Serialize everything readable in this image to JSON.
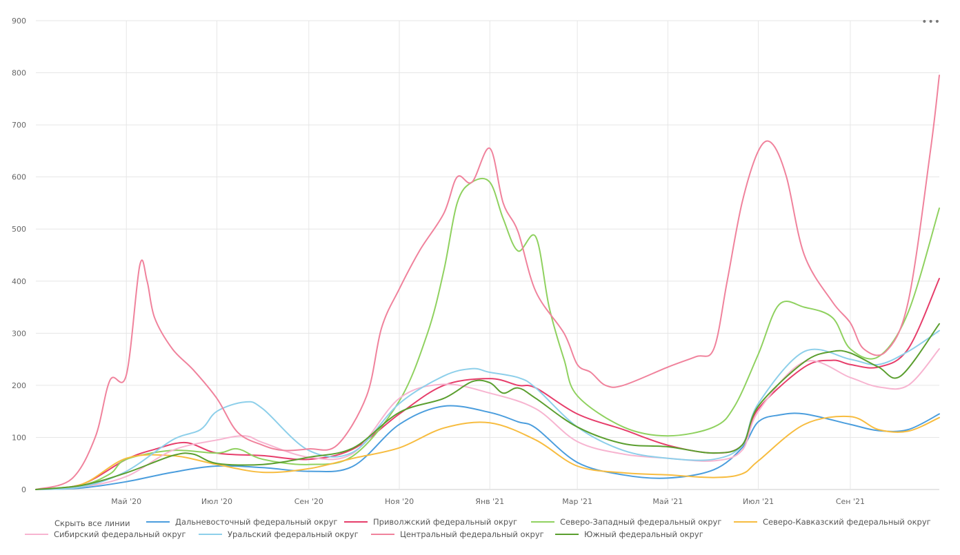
{
  "menu_label": "•••",
  "legend": {
    "hide_all": "Скрыть все линии"
  },
  "chart_data": {
    "type": "line",
    "title": "",
    "xlabel": "",
    "ylabel": "",
    "ylim": [
      0,
      900
    ],
    "yticks": [
      0,
      100,
      200,
      300,
      400,
      500,
      600,
      700,
      800,
      900
    ],
    "xlim": [
      "2020-03-01",
      "2021-10-31"
    ],
    "xticks": [
      {
        "date": "2020-05-01",
        "label": "Май '20"
      },
      {
        "date": "2020-07-01",
        "label": "Июл '20"
      },
      {
        "date": "2020-09-01",
        "label": "Сен '20"
      },
      {
        "date": "2020-11-01",
        "label": "Ноя '20"
      },
      {
        "date": "2021-01-01",
        "label": "Янв '21"
      },
      {
        "date": "2021-03-01",
        "label": "Мар '21"
      },
      {
        "date": "2021-05-01",
        "label": "Май '21"
      },
      {
        "date": "2021-07-01",
        "label": "Июл '21"
      },
      {
        "date": "2021-09-01",
        "label": "Сен '21"
      }
    ],
    "grid": true,
    "legend_position": "bottom",
    "series": [
      {
        "name": "Дальневосточный федеральный округ",
        "color": "#4a9ddd",
        "points": [
          [
            "2020-03-01",
            0
          ],
          [
            "2020-04-01",
            3
          ],
          [
            "2020-05-01",
            15
          ],
          [
            "2020-06-01",
            33
          ],
          [
            "2020-07-01",
            45
          ],
          [
            "2020-08-01",
            42
          ],
          [
            "2020-09-01",
            35
          ],
          [
            "2020-10-01",
            45
          ],
          [
            "2020-11-01",
            125
          ],
          [
            "2020-12-01",
            160
          ],
          [
            "2021-01-01",
            148
          ],
          [
            "2021-01-20",
            130
          ],
          [
            "2021-02-01",
            118
          ],
          [
            "2021-03-01",
            52
          ],
          [
            "2021-04-01",
            28
          ],
          [
            "2021-05-01",
            22
          ],
          [
            "2021-06-01",
            38
          ],
          [
            "2021-06-20",
            80
          ],
          [
            "2021-07-01",
            130
          ],
          [
            "2021-07-15",
            143
          ],
          [
            "2021-08-01",
            145
          ],
          [
            "2021-09-01",
            125
          ],
          [
            "2021-09-20",
            113
          ],
          [
            "2021-10-10",
            115
          ],
          [
            "2021-10-31",
            145
          ]
        ]
      },
      {
        "name": "Приволжский федеральный округ",
        "color": "#e63d6a",
        "points": [
          [
            "2020-03-01",
            0
          ],
          [
            "2020-04-01",
            10
          ],
          [
            "2020-05-01",
            58
          ],
          [
            "2020-05-20",
            77
          ],
          [
            "2020-06-10",
            90
          ],
          [
            "2020-07-01",
            70
          ],
          [
            "2020-08-01",
            65
          ],
          [
            "2020-09-01",
            58
          ],
          [
            "2020-10-01",
            78
          ],
          [
            "2020-11-01",
            145
          ],
          [
            "2020-12-01",
            200
          ],
          [
            "2021-01-01",
            213
          ],
          [
            "2021-01-20",
            200
          ],
          [
            "2021-02-01",
            195
          ],
          [
            "2021-03-01",
            145
          ],
          [
            "2021-04-01",
            115
          ],
          [
            "2021-05-01",
            85
          ],
          [
            "2021-06-01",
            70
          ],
          [
            "2021-06-20",
            85
          ],
          [
            "2021-07-01",
            155
          ],
          [
            "2021-08-01",
            235
          ],
          [
            "2021-08-20",
            248
          ],
          [
            "2021-09-01",
            240
          ],
          [
            "2021-09-20",
            235
          ],
          [
            "2021-10-10",
            270
          ],
          [
            "2021-10-31",
            405
          ]
        ]
      },
      {
        "name": "Северо-Западный федеральный округ",
        "color": "#8fd15f",
        "points": [
          [
            "2020-03-01",
            0
          ],
          [
            "2020-04-01",
            8
          ],
          [
            "2020-04-20",
            30
          ],
          [
            "2020-05-01",
            58
          ],
          [
            "2020-06-01",
            75
          ],
          [
            "2020-07-01",
            70
          ],
          [
            "2020-07-15",
            78
          ],
          [
            "2020-08-01",
            58
          ],
          [
            "2020-09-01",
            48
          ],
          [
            "2020-10-01",
            65
          ],
          [
            "2020-11-01",
            170
          ],
          [
            "2020-11-20",
            300
          ],
          [
            "2020-12-01",
            420
          ],
          [
            "2020-12-10",
            550
          ],
          [
            "2020-12-20",
            590
          ],
          [
            "2021-01-01",
            590
          ],
          [
            "2021-01-10",
            520
          ],
          [
            "2021-01-20",
            458
          ],
          [
            "2021-02-01",
            485
          ],
          [
            "2021-02-10",
            350
          ],
          [
            "2021-02-20",
            250
          ],
          [
            "2021-03-01",
            180
          ],
          [
            "2021-04-01",
            120
          ],
          [
            "2021-05-01",
            103
          ],
          [
            "2021-06-01",
            120
          ],
          [
            "2021-06-15",
            160
          ],
          [
            "2021-07-01",
            260
          ],
          [
            "2021-07-15",
            355
          ],
          [
            "2021-08-01",
            350
          ],
          [
            "2021-08-20",
            330
          ],
          [
            "2021-09-01",
            270
          ],
          [
            "2021-09-20",
            255
          ],
          [
            "2021-10-10",
            340
          ],
          [
            "2021-10-31",
            540
          ]
        ]
      },
      {
        "name": "Северо-Кавказский федеральный округ",
        "color": "#f7bc3f",
        "points": [
          [
            "2020-03-01",
            0
          ],
          [
            "2020-04-01",
            10
          ],
          [
            "2020-05-01",
            60
          ],
          [
            "2020-06-01",
            65
          ],
          [
            "2020-07-01",
            48
          ],
          [
            "2020-08-01",
            33
          ],
          [
            "2020-09-01",
            40
          ],
          [
            "2020-10-01",
            60
          ],
          [
            "2020-11-01",
            80
          ],
          [
            "2020-12-01",
            118
          ],
          [
            "2021-01-01",
            128
          ],
          [
            "2021-02-01",
            95
          ],
          [
            "2021-03-01",
            45
          ],
          [
            "2021-04-01",
            32
          ],
          [
            "2021-05-01",
            28
          ],
          [
            "2021-06-01",
            23
          ],
          [
            "2021-06-20",
            30
          ],
          [
            "2021-07-01",
            55
          ],
          [
            "2021-08-01",
            125
          ],
          [
            "2021-09-01",
            140
          ],
          [
            "2021-09-20",
            115
          ],
          [
            "2021-10-10",
            112
          ],
          [
            "2021-10-31",
            138
          ]
        ]
      },
      {
        "name": "Сибирский федеральный округ",
        "color": "#f7b4d0",
        "points": [
          [
            "2020-03-01",
            0
          ],
          [
            "2020-04-01",
            5
          ],
          [
            "2020-05-01",
            25
          ],
          [
            "2020-06-01",
            75
          ],
          [
            "2020-07-01",
            95
          ],
          [
            "2020-07-20",
            103
          ],
          [
            "2020-08-01",
            90
          ],
          [
            "2020-09-01",
            62
          ],
          [
            "2020-10-01",
            70
          ],
          [
            "2020-11-01",
            175
          ],
          [
            "2020-12-01",
            202
          ],
          [
            "2021-01-01",
            185
          ],
          [
            "2021-02-01",
            155
          ],
          [
            "2021-03-01",
            92
          ],
          [
            "2021-04-01",
            68
          ],
          [
            "2021-05-01",
            60
          ],
          [
            "2021-06-01",
            55
          ],
          [
            "2021-06-20",
            75
          ],
          [
            "2021-07-01",
            150
          ],
          [
            "2021-08-01",
            245
          ],
          [
            "2021-09-01",
            215
          ],
          [
            "2021-09-20",
            197
          ],
          [
            "2021-10-10",
            200
          ],
          [
            "2021-10-31",
            270
          ]
        ]
      },
      {
        "name": "Уральский федеральный округ",
        "color": "#8dcfea",
        "points": [
          [
            "2020-03-01",
            0
          ],
          [
            "2020-04-01",
            5
          ],
          [
            "2020-05-01",
            35
          ],
          [
            "2020-06-01",
            95
          ],
          [
            "2020-06-20",
            115
          ],
          [
            "2020-07-01",
            150
          ],
          [
            "2020-07-20",
            168
          ],
          [
            "2020-08-01",
            155
          ],
          [
            "2020-09-01",
            75
          ],
          [
            "2020-10-01",
            72
          ],
          [
            "2020-11-01",
            165
          ],
          [
            "2020-12-01",
            218
          ],
          [
            "2020-12-20",
            232
          ],
          [
            "2021-01-01",
            225
          ],
          [
            "2021-01-20",
            215
          ],
          [
            "2021-02-01",
            195
          ],
          [
            "2021-03-01",
            120
          ],
          [
            "2021-04-01",
            75
          ],
          [
            "2021-05-01",
            60
          ],
          [
            "2021-06-01",
            58
          ],
          [
            "2021-06-20",
            85
          ],
          [
            "2021-07-01",
            165
          ],
          [
            "2021-08-01",
            265
          ],
          [
            "2021-09-01",
            250
          ],
          [
            "2021-09-20",
            240
          ],
          [
            "2021-10-10",
            265
          ],
          [
            "2021-10-31",
            305
          ]
        ]
      },
      {
        "name": "Центральный федеральный округ",
        "color": "#f0829c",
        "points": [
          [
            "2020-03-01",
            0
          ],
          [
            "2020-03-25",
            20
          ],
          [
            "2020-04-10",
            100
          ],
          [
            "2020-04-20",
            210
          ],
          [
            "2020-05-01",
            220
          ],
          [
            "2020-05-10",
            430
          ],
          [
            "2020-05-15",
            400
          ],
          [
            "2020-05-20",
            330
          ],
          [
            "2020-06-01",
            270
          ],
          [
            "2020-06-15",
            230
          ],
          [
            "2020-07-01",
            175
          ],
          [
            "2020-07-15",
            110
          ],
          [
            "2020-08-01",
            85
          ],
          [
            "2020-08-15",
            75
          ],
          [
            "2020-09-01",
            78
          ],
          [
            "2020-09-20",
            85
          ],
          [
            "2020-10-10",
            180
          ],
          [
            "2020-10-20",
            310
          ],
          [
            "2020-11-01",
            385
          ],
          [
            "2020-11-15",
            460
          ],
          [
            "2020-12-01",
            530
          ],
          [
            "2020-12-10",
            600
          ],
          [
            "2020-12-20",
            590
          ],
          [
            "2021-01-01",
            655
          ],
          [
            "2021-01-10",
            550
          ],
          [
            "2021-01-20",
            495
          ],
          [
            "2021-02-01",
            380
          ],
          [
            "2021-02-20",
            300
          ],
          [
            "2021-03-01",
            240
          ],
          [
            "2021-03-10",
            225
          ],
          [
            "2021-03-20",
            200
          ],
          [
            "2021-04-01",
            200
          ],
          [
            "2021-05-01",
            235
          ],
          [
            "2021-05-20",
            255
          ],
          [
            "2021-06-01",
            270
          ],
          [
            "2021-06-10",
            400
          ],
          [
            "2021-06-20",
            550
          ],
          [
            "2021-07-01",
            650
          ],
          [
            "2021-07-10",
            665
          ],
          [
            "2021-07-20",
            600
          ],
          [
            "2021-08-01",
            450
          ],
          [
            "2021-08-20",
            360
          ],
          [
            "2021-09-01",
            320
          ],
          [
            "2021-09-10",
            270
          ],
          [
            "2021-09-25",
            265
          ],
          [
            "2021-10-10",
            360
          ],
          [
            "2021-10-25",
            650
          ],
          [
            "2021-10-31",
            795
          ]
        ]
      },
      {
        "name": "Южный федеральный округ",
        "color": "#5a9e2e",
        "points": [
          [
            "2020-03-01",
            0
          ],
          [
            "2020-04-01",
            8
          ],
          [
            "2020-05-01",
            32
          ],
          [
            "2020-06-01",
            65
          ],
          [
            "2020-06-15",
            68
          ],
          [
            "2020-07-01",
            50
          ],
          [
            "2020-08-01",
            48
          ],
          [
            "2020-09-01",
            62
          ],
          [
            "2020-10-01",
            80
          ],
          [
            "2020-11-01",
            148
          ],
          [
            "2020-12-01",
            175
          ],
          [
            "2020-12-20",
            207
          ],
          [
            "2021-01-01",
            205
          ],
          [
            "2021-01-10",
            185
          ],
          [
            "2021-01-20",
            195
          ],
          [
            "2021-02-01",
            175
          ],
          [
            "2021-03-01",
            120
          ],
          [
            "2021-04-01",
            88
          ],
          [
            "2021-05-01",
            82
          ],
          [
            "2021-06-01",
            70
          ],
          [
            "2021-06-20",
            85
          ],
          [
            "2021-07-01",
            160
          ],
          [
            "2021-08-01",
            245
          ],
          [
            "2021-08-20",
            265
          ],
          [
            "2021-09-01",
            262
          ],
          [
            "2021-09-20",
            235
          ],
          [
            "2021-10-05",
            218
          ],
          [
            "2021-10-31",
            318
          ]
        ]
      }
    ]
  }
}
